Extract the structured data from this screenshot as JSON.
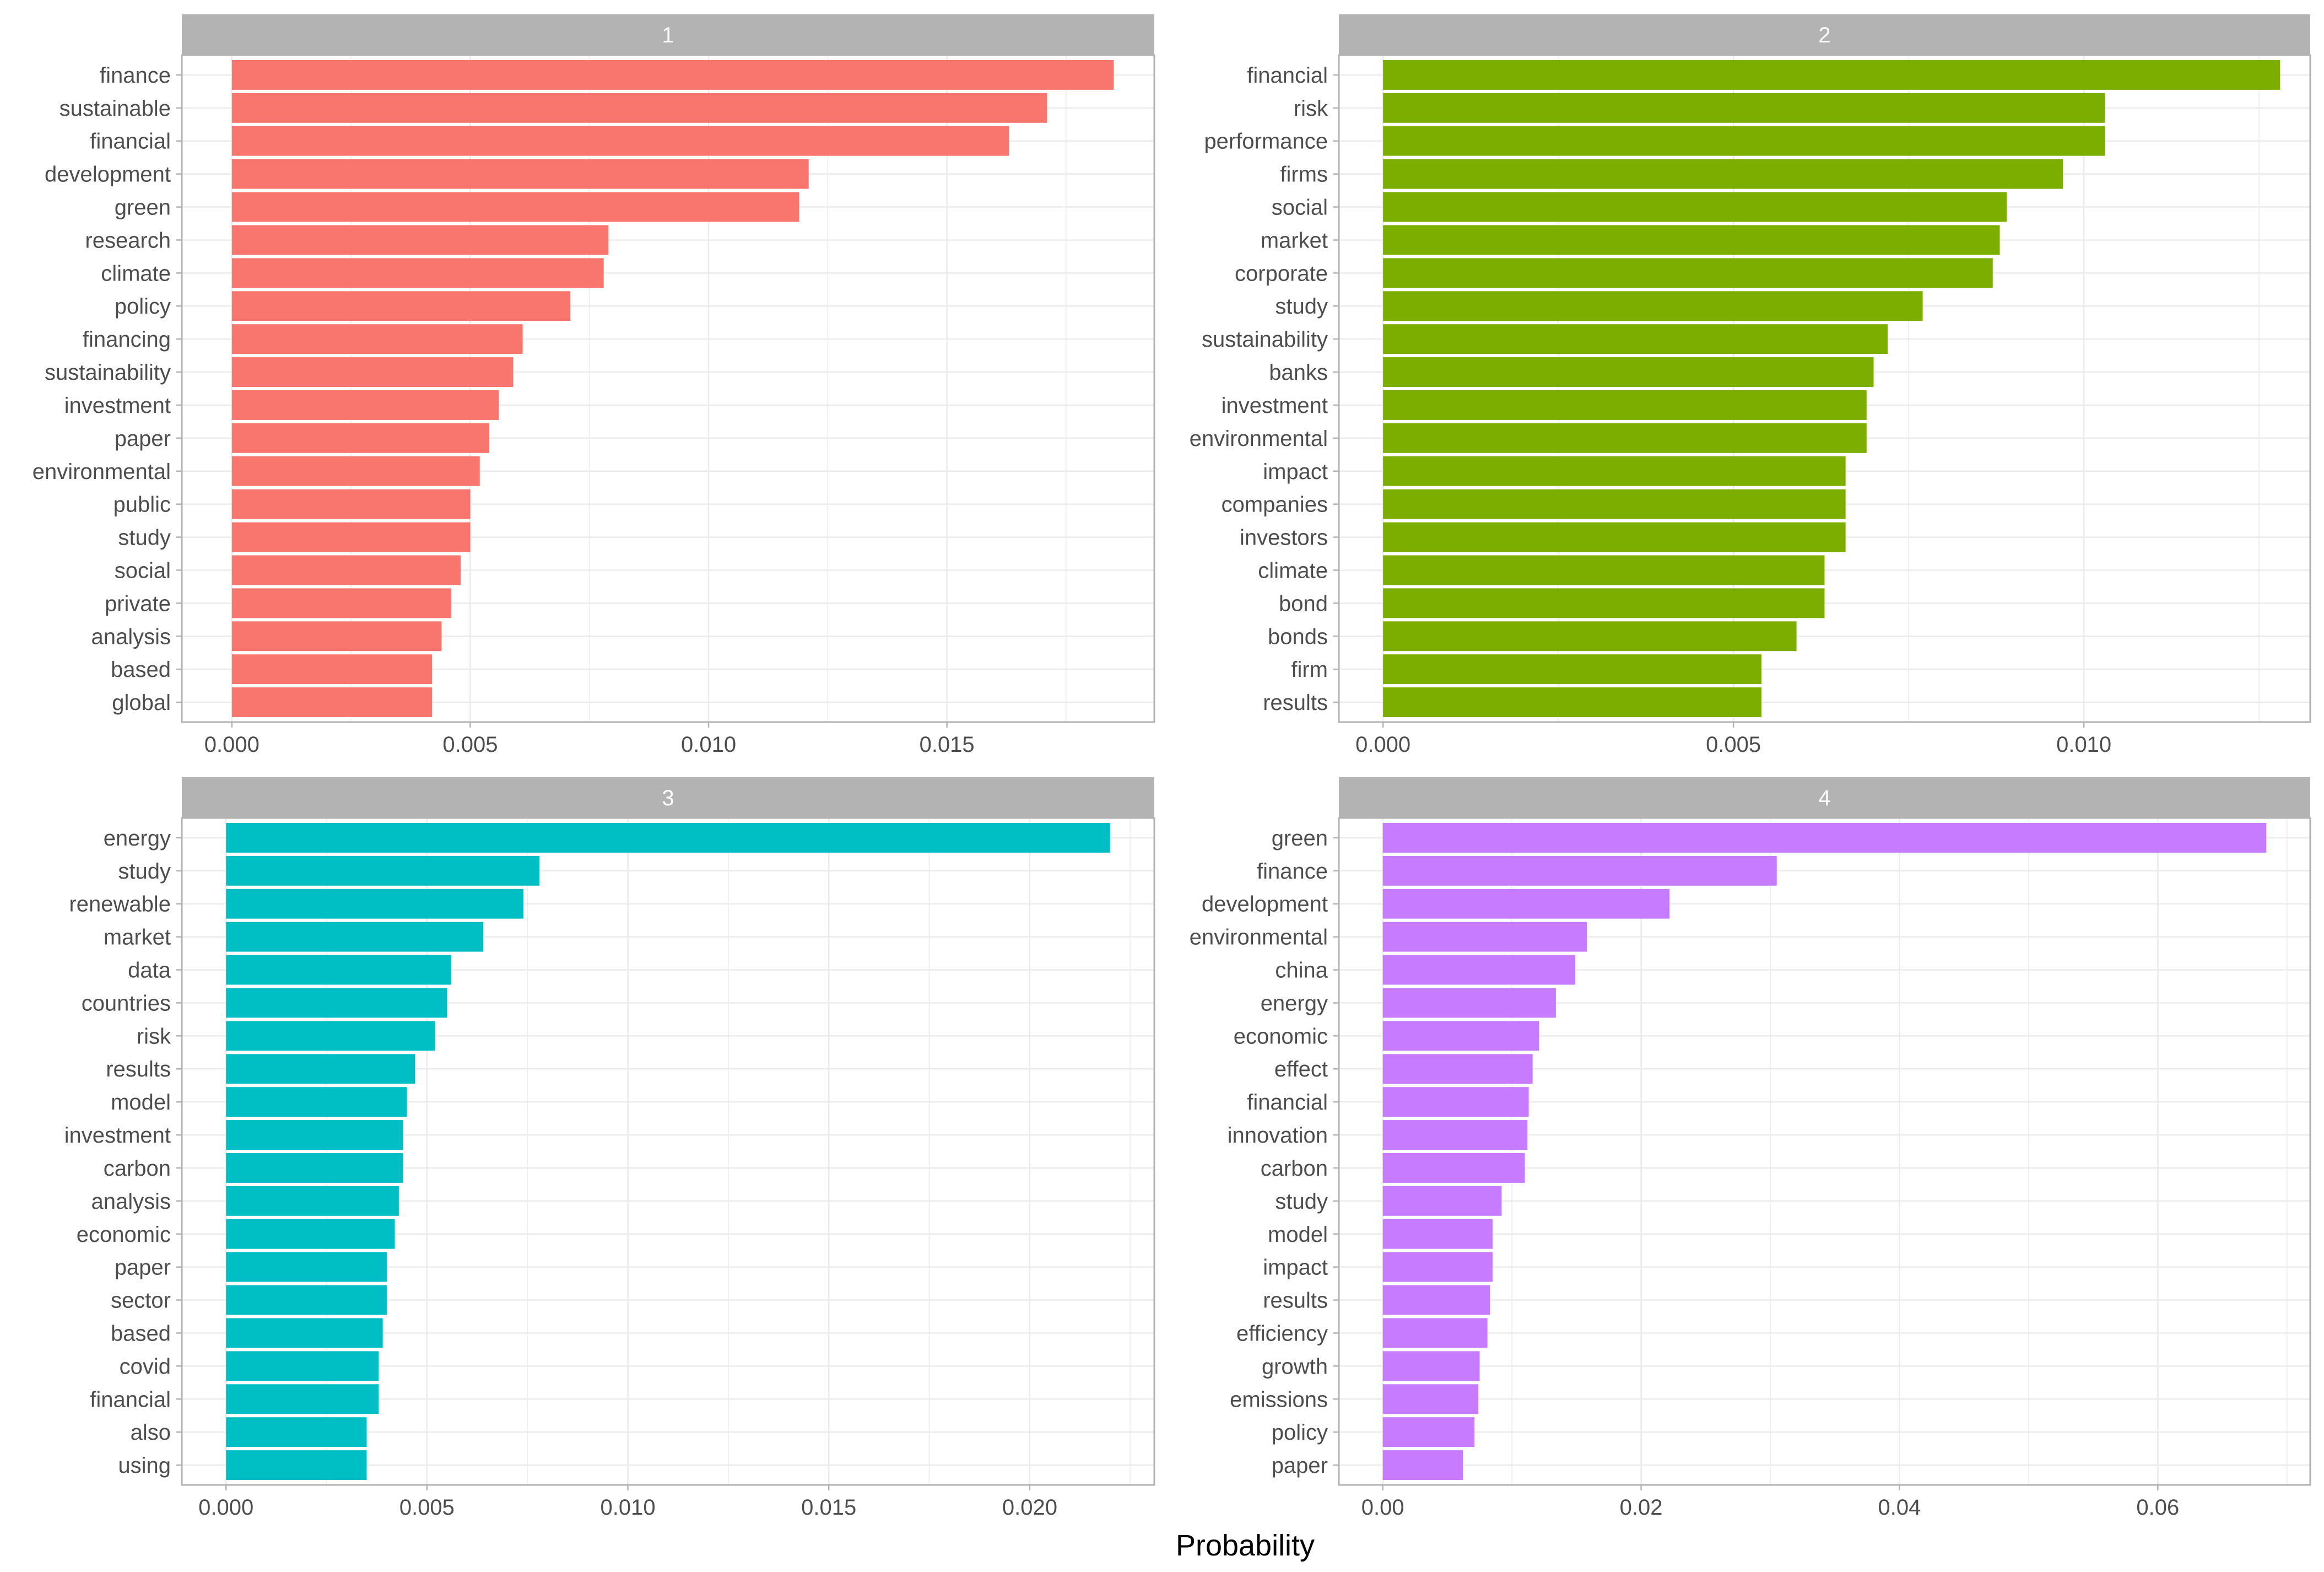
{
  "chart_data": {
    "type": "bar",
    "orientation": "horizontal",
    "layout": "facet-grid-2x2",
    "title": "",
    "xlabel": "Probability",
    "ylabel": "",
    "grid": true,
    "legend": "none",
    "panels": [
      {
        "strip": "1",
        "color": "#F8766D",
        "xlim": [
          -0.00105,
          0.01935
        ],
        "ticks": [
          0,
          0.005,
          0.01,
          0.015
        ],
        "tick_labels": [
          "0.000",
          "0.005",
          "0.010",
          "0.015"
        ],
        "categories": [
          "finance",
          "sustainable",
          "financial",
          "development",
          "green",
          "research",
          "climate",
          "policy",
          "financing",
          "sustainability",
          "investment",
          "paper",
          "environmental",
          "public",
          "study",
          "social",
          "private",
          "analysis",
          "based",
          "global"
        ],
        "values": [
          0.0185,
          0.0171,
          0.0163,
          0.0121,
          0.0119,
          0.0079,
          0.0078,
          0.0071,
          0.0061,
          0.0059,
          0.0056,
          0.0054,
          0.0052,
          0.005,
          0.005,
          0.0048,
          0.0046,
          0.0044,
          0.0042,
          0.0042
        ]
      },
      {
        "strip": "2",
        "color": "#7CAE00",
        "xlim": [
          -0.00063,
          0.01323
        ],
        "ticks": [
          0,
          0.005,
          0.01
        ],
        "tick_labels": [
          "0.000",
          "0.005",
          "0.010"
        ],
        "categories": [
          "financial",
          "risk",
          "performance",
          "firms",
          "social",
          "market",
          "corporate",
          "study",
          "sustainability",
          "banks",
          "investment",
          "environmental",
          "impact",
          "companies",
          "investors",
          "climate",
          "bond",
          "bonds",
          "firm",
          "results"
        ],
        "values": [
          0.0128,
          0.0103,
          0.0103,
          0.0097,
          0.0089,
          0.0088,
          0.0087,
          0.0077,
          0.0072,
          0.007,
          0.0069,
          0.0069,
          0.0066,
          0.0066,
          0.0066,
          0.0063,
          0.0063,
          0.0059,
          0.0054,
          0.0054
        ]
      },
      {
        "strip": "3",
        "color": "#00BFC4",
        "xlim": [
          -0.0011,
          0.0231
        ],
        "ticks": [
          0,
          0.005,
          0.01,
          0.015,
          0.02
        ],
        "tick_labels": [
          "0.000",
          "0.005",
          "0.010",
          "0.015",
          "0.020"
        ],
        "categories": [
          "energy",
          "study",
          "renewable",
          "market",
          "data",
          "countries",
          "risk",
          "results",
          "model",
          "investment",
          "carbon",
          "analysis",
          "economic",
          "paper",
          "sector",
          "based",
          "covid",
          "financial",
          "also",
          "using"
        ],
        "values": [
          0.022,
          0.0078,
          0.0074,
          0.0064,
          0.0056,
          0.0055,
          0.0052,
          0.0047,
          0.0045,
          0.0044,
          0.0044,
          0.0043,
          0.0042,
          0.004,
          0.004,
          0.0039,
          0.0038,
          0.0038,
          0.0035,
          0.0035
        ]
      },
      {
        "strip": "4",
        "color": "#C77CFF",
        "xlim": [
          -0.0034,
          0.0718
        ],
        "ticks": [
          0,
          0.02,
          0.04,
          0.06
        ],
        "tick_labels": [
          "0.00",
          "0.02",
          "0.04",
          "0.06"
        ],
        "categories": [
          "green",
          "finance",
          "development",
          "environmental",
          "china",
          "energy",
          "economic",
          "effect",
          "financial",
          "innovation",
          "carbon",
          "study",
          "model",
          "impact",
          "results",
          "efficiency",
          "growth",
          "emissions",
          "policy",
          "paper"
        ],
        "values": [
          0.0684,
          0.0305,
          0.0222,
          0.0158,
          0.0149,
          0.0134,
          0.0121,
          0.0116,
          0.0113,
          0.0112,
          0.011,
          0.0092,
          0.0085,
          0.0085,
          0.0083,
          0.0081,
          0.0075,
          0.0074,
          0.0071,
          0.0062
        ]
      }
    ]
  }
}
